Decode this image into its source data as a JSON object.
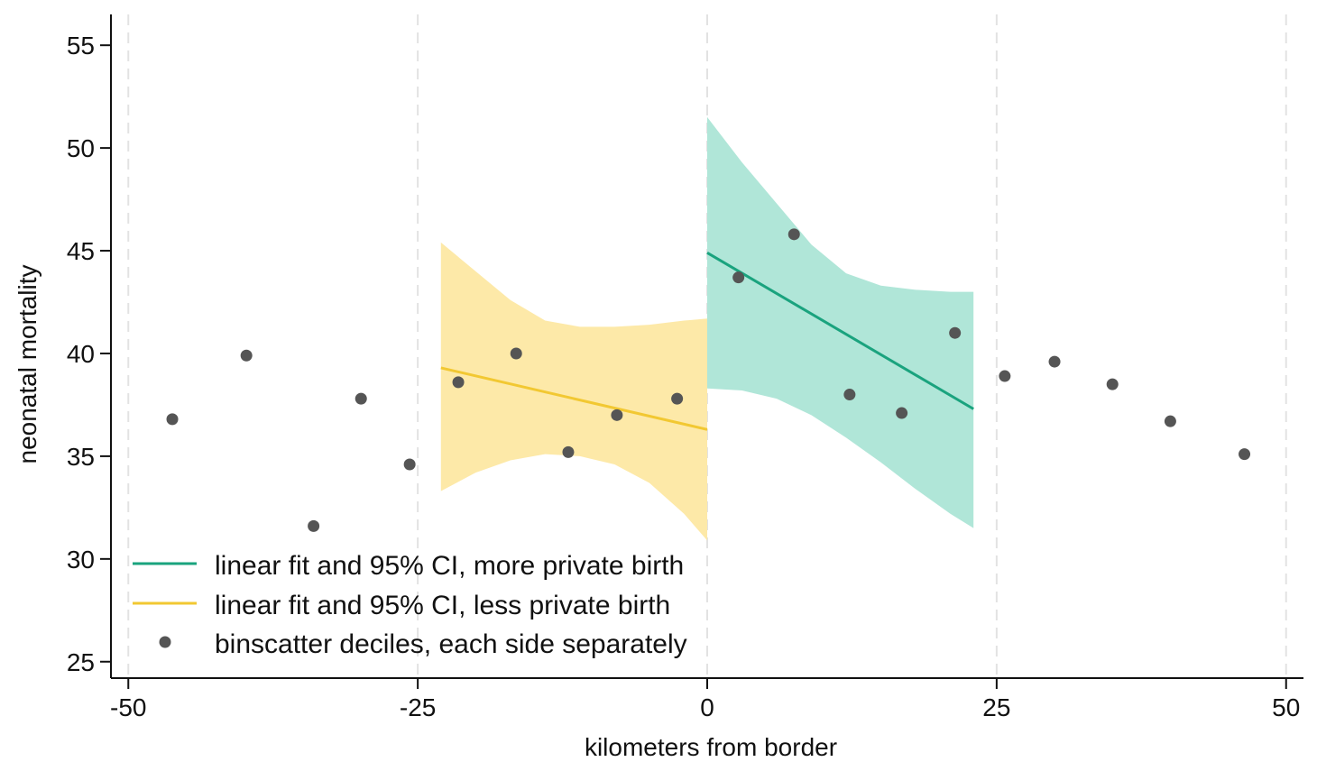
{
  "chart_data": {
    "type": "scatter",
    "xlabel": "kilometers from border",
    "ylabel": "neonatal mortality",
    "xlim": [
      -51.5,
      51.5
    ],
    "ylim": [
      24.2,
      56.5
    ],
    "xticks": [
      -50,
      -25,
      0,
      25,
      50
    ],
    "yticks": [
      25,
      30,
      35,
      40,
      45,
      50,
      55
    ],
    "vertical_gridlines": [
      -50,
      -25,
      0,
      25,
      50
    ],
    "series": [
      {
        "name": "binscatter deciles, each side separately",
        "kind": "points",
        "color": "#555555",
        "points": [
          {
            "x": -46.2,
            "y": 36.8
          },
          {
            "x": -39.8,
            "y": 39.9
          },
          {
            "x": -34.0,
            "y": 31.6
          },
          {
            "x": -29.9,
            "y": 37.8
          },
          {
            "x": -25.7,
            "y": 34.6
          },
          {
            "x": -21.5,
            "y": 38.6
          },
          {
            "x": -16.5,
            "y": 40.0
          },
          {
            "x": -12.0,
            "y": 35.2
          },
          {
            "x": -7.8,
            "y": 37.0
          },
          {
            "x": -2.6,
            "y": 37.8
          },
          {
            "x": 2.7,
            "y": 43.7
          },
          {
            "x": 7.5,
            "y": 45.8
          },
          {
            "x": 12.3,
            "y": 38.0
          },
          {
            "x": 16.8,
            "y": 37.1
          },
          {
            "x": 21.4,
            "y": 41.0
          },
          {
            "x": 25.7,
            "y": 38.9
          },
          {
            "x": 30.0,
            "y": 39.6
          },
          {
            "x": 35.0,
            "y": 38.5
          },
          {
            "x": 40.0,
            "y": 36.7
          },
          {
            "x": 46.4,
            "y": 35.1
          }
        ]
      },
      {
        "name": "linear fit and 95% CI, less private birth",
        "kind": "fit",
        "color": "#f2c832",
        "band_color": "#fde9a8",
        "x": [
          -23.0,
          -20.0,
          -17.0,
          -14.0,
          -11.0,
          -8.0,
          -5.0,
          -2.0,
          0.0
        ],
        "fit": [
          39.3,
          38.9,
          38.5,
          38.1,
          37.7,
          37.3,
          36.9,
          36.5,
          36.3
        ],
        "lower": [
          33.3,
          34.2,
          34.8,
          35.1,
          35.0,
          34.6,
          33.7,
          32.2,
          30.9
        ],
        "upper": [
          45.4,
          44.0,
          42.6,
          41.6,
          41.3,
          41.3,
          41.4,
          41.6,
          41.7
        ]
      },
      {
        "name": "linear fit and 95% CI, more private birth",
        "kind": "fit",
        "color": "#1aa37e",
        "band_color": "#b0e6d8",
        "x": [
          0.0,
          3.0,
          6.0,
          9.0,
          12.0,
          15.0,
          18.0,
          21.0,
          23.0
        ],
        "fit": [
          44.9,
          43.9,
          42.9,
          41.9,
          40.9,
          39.9,
          38.9,
          37.9,
          37.3
        ],
        "lower": [
          38.3,
          38.2,
          37.8,
          37.0,
          35.9,
          34.7,
          33.4,
          32.2,
          31.5
        ],
        "upper": [
          51.5,
          49.3,
          47.3,
          45.3,
          43.9,
          43.3,
          43.1,
          43.0,
          43.0
        ]
      }
    ],
    "legend": {
      "position": "bottom-left",
      "entries": [
        {
          "label": "linear fit and 95% CI, more private birth",
          "marker": "line",
          "color": "#1aa37e"
        },
        {
          "label": "linear fit and 95% CI, less private birth",
          "marker": "line",
          "color": "#f2c832"
        },
        {
          "label": "binscatter deciles, each side separately",
          "marker": "dot",
          "color": "#555555"
        }
      ]
    }
  }
}
